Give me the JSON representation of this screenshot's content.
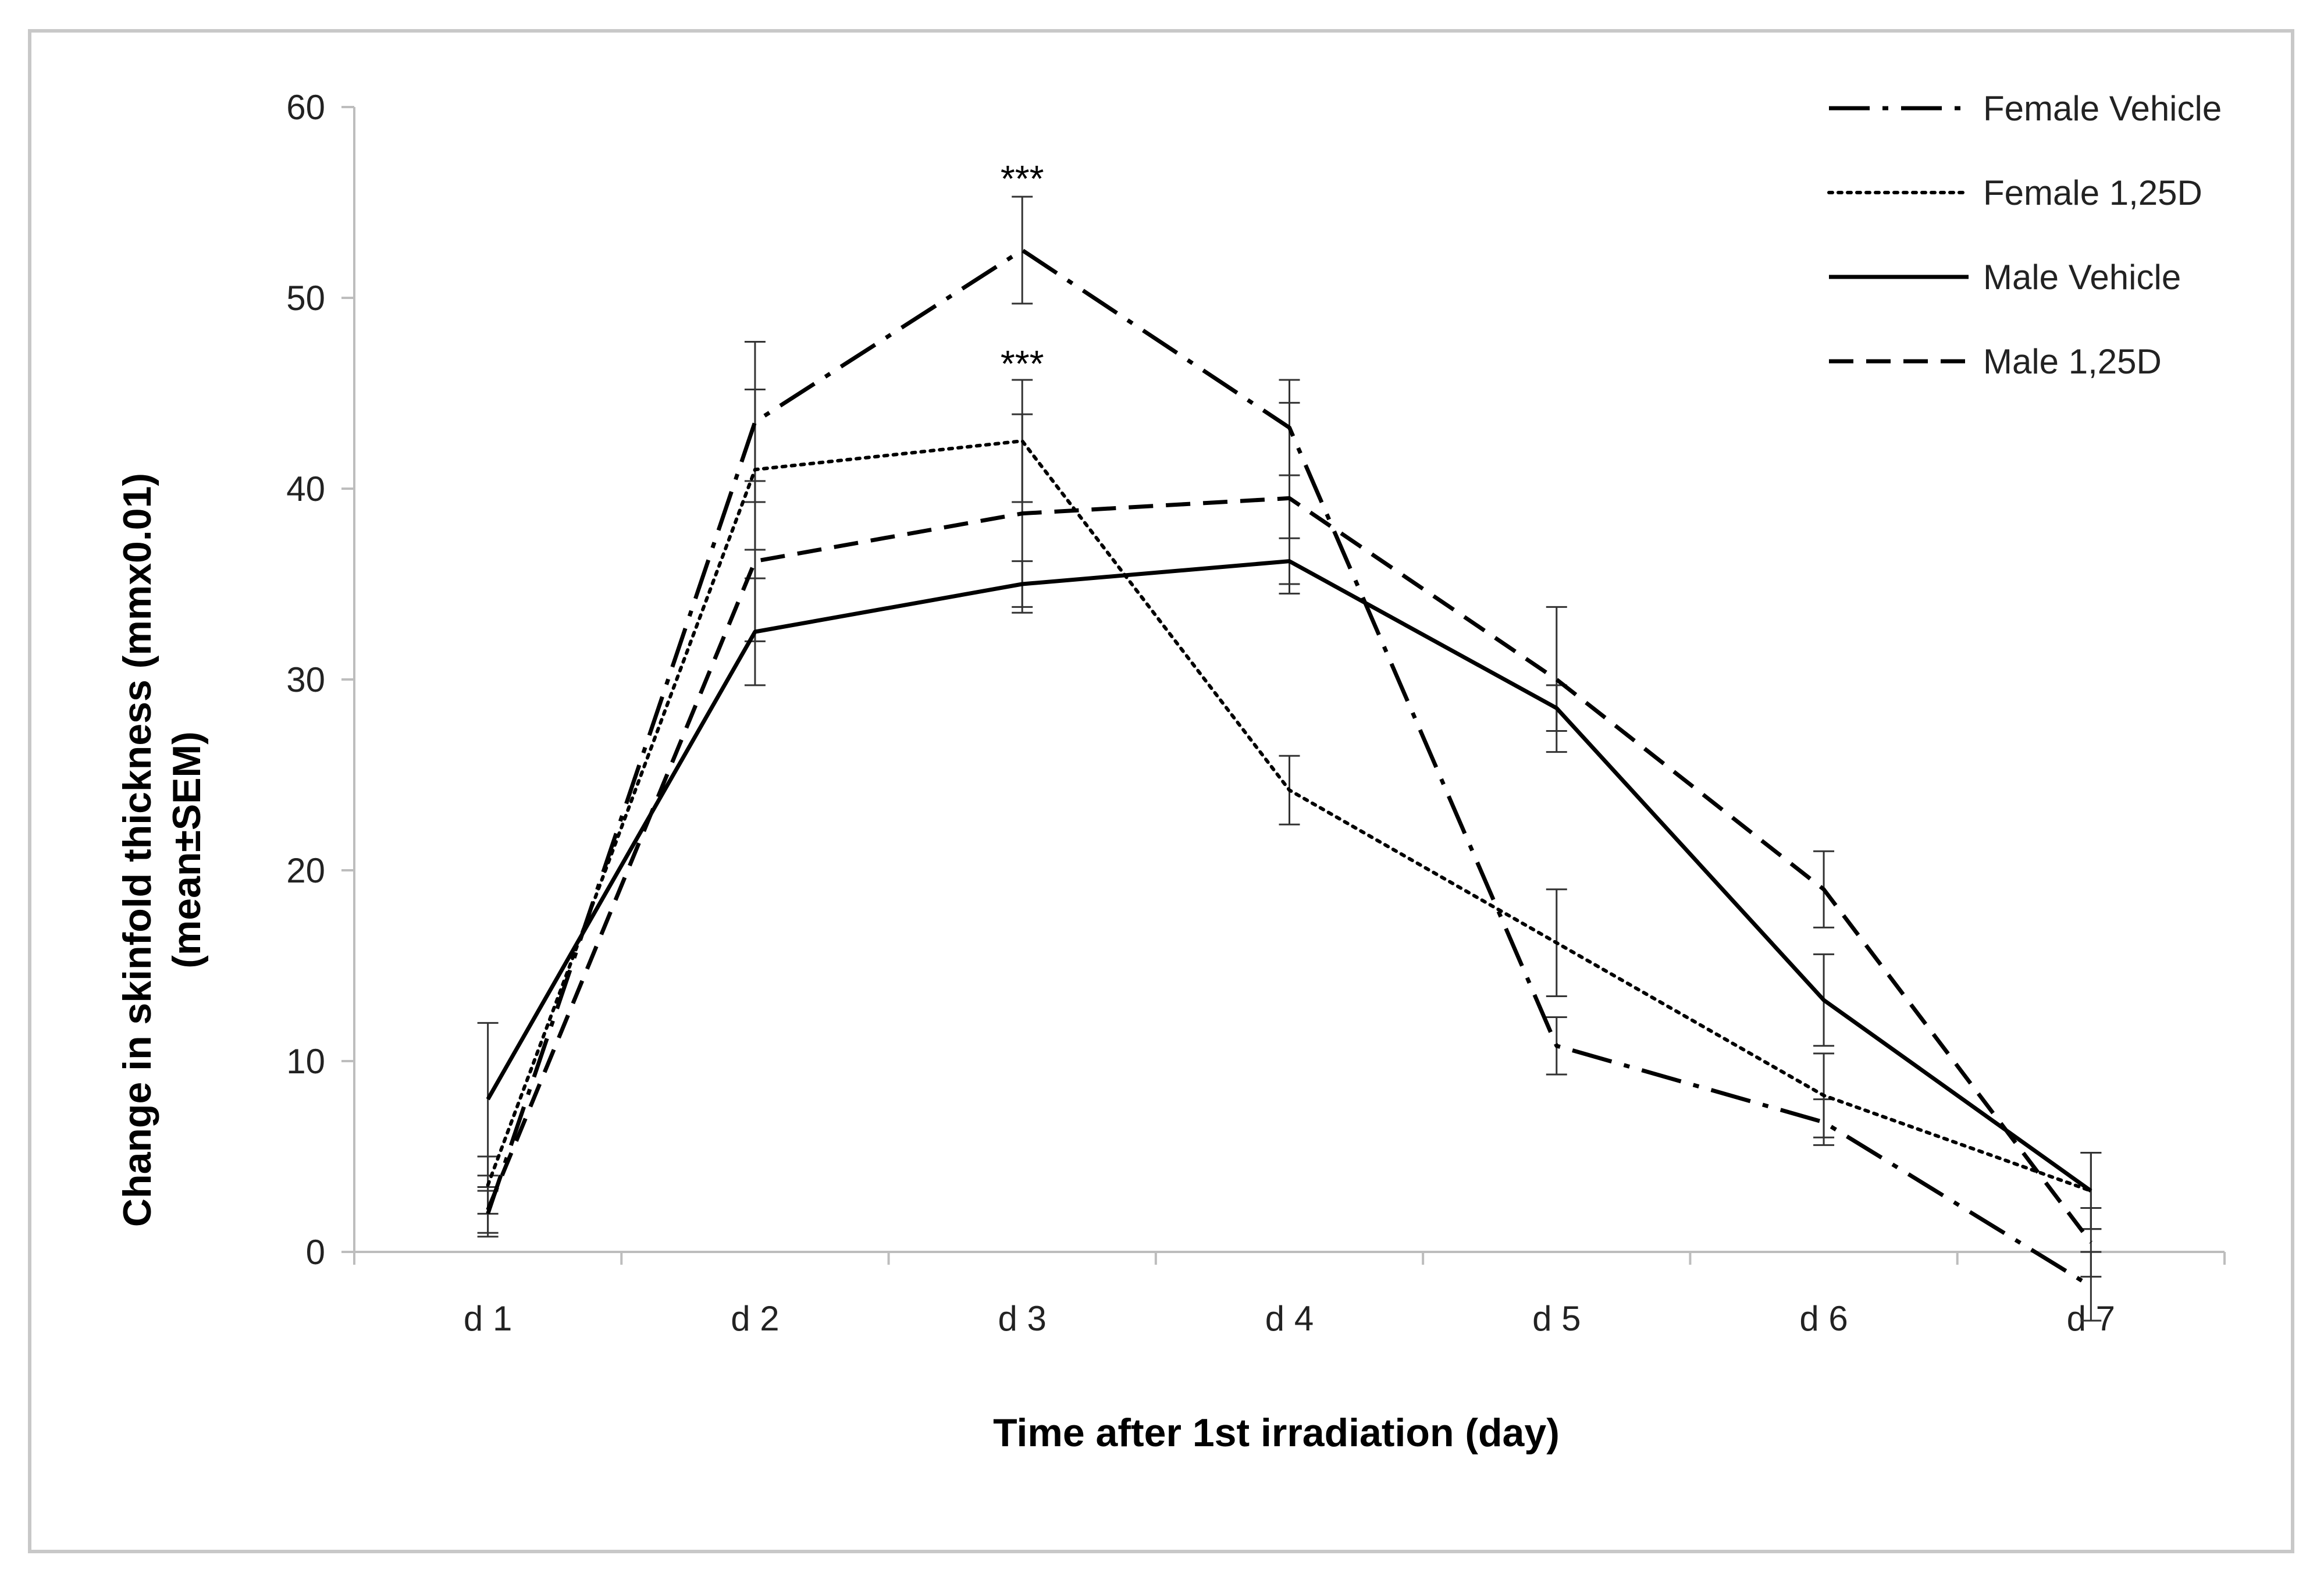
{
  "chart_data": {
    "type": "line",
    "title": "",
    "xlabel": "Time after 1st irradiation  (day)",
    "ylabel": "Change in skinfold thickness (mmx0.01)",
    "ylabel2": "(mean±SEM)",
    "ylim": [
      0,
      60
    ],
    "yticks": [
      "0",
      "10",
      "20",
      "30",
      "40",
      "50",
      "60"
    ],
    "categories": [
      "d 1",
      "d 2",
      "d 3",
      "d 4",
      "d 5",
      "d 6",
      "d 7"
    ],
    "legend_position": "top-right",
    "grid": false,
    "series": [
      {
        "name": "Female Vehicle",
        "style": "dash-dot",
        "values": [
          2,
          43.5,
          52.5,
          43.2,
          10.8,
          6.8,
          -1.8
        ],
        "errors": [
          1.2,
          4.2,
          2.8,
          2.5,
          1.5,
          1.2,
          1.8
        ]
      },
      {
        "name": "Female 1,25D",
        "style": "dotted",
        "values": [
          3.5,
          41,
          42.5,
          24.2,
          16.2,
          8.2,
          3.2
        ],
        "errors": [
          1.5,
          4.2,
          3.2,
          1.8,
          2.8,
          2.2,
          2.0
        ]
      },
      {
        "name": "Male Vehicle",
        "style": "solid",
        "values": [
          8,
          32.5,
          35,
          36.2,
          28.5,
          13.2,
          3.2
        ],
        "errors": [
          4.0,
          2.8,
          1.2,
          1.2,
          1.2,
          2.4,
          2.0
        ]
      },
      {
        "name": "Male 1,25D",
        "style": "dashed",
        "values": [
          2.2,
          36.2,
          38.7,
          39.5,
          30,
          19,
          0.5
        ],
        "errors": [
          1.2,
          4.2,
          5.2,
          5.0,
          3.8,
          2.0,
          1.8
        ]
      }
    ],
    "annotations": [
      {
        "text": "***",
        "x": "d 3",
        "y": 56.5
      },
      {
        "text": "***",
        "x": "d 3",
        "y": 46.8
      }
    ]
  }
}
